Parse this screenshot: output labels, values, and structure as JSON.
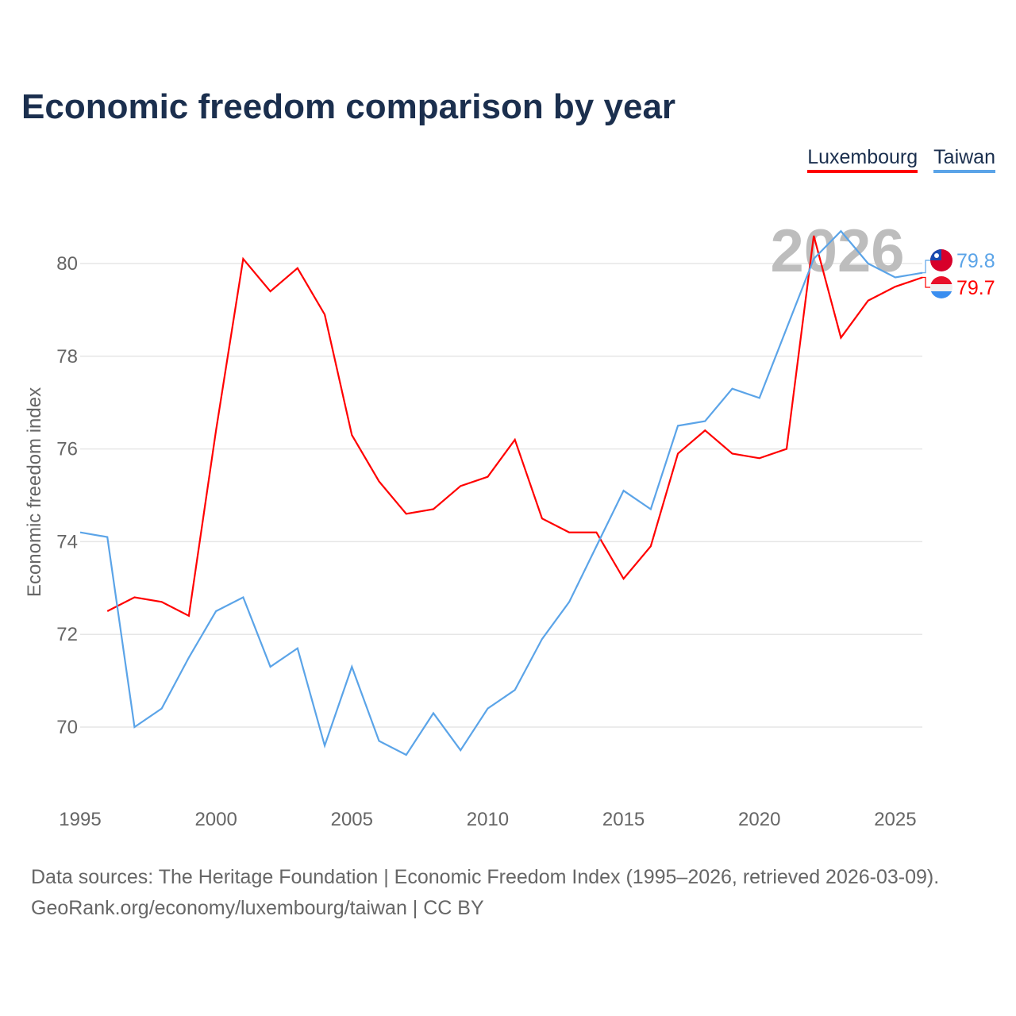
{
  "title": "Economic freedom comparison by year",
  "footer": {
    "line1": "Data sources: The Heritage Foundation | Economic Freedom Index (1995–2026, retrieved 2026-03-09).",
    "line2": "GeoRank.org/economy/luxembourg/taiwan | CC BY"
  },
  "chart_data": {
    "type": "line",
    "title": "Economic freedom comparison by year",
    "xlabel": "",
    "ylabel": "Economic freedom index",
    "xlim": [
      1995,
      2026
    ],
    "ylim": [
      68.5,
      81.5
    ],
    "xticks": [
      1995,
      2000,
      2005,
      2010,
      2015,
      2020,
      2025
    ],
    "yticks": [
      70,
      72,
      74,
      76,
      78,
      80
    ],
    "grid": true,
    "legend_placement": "top-right",
    "year_label": "2026",
    "series": [
      {
        "name": "Luxembourg",
        "color": "#ff0000",
        "end_label": "79.7",
        "x": [
          1996,
          1997,
          1998,
          1999,
          2000,
          2001,
          2002,
          2003,
          2004,
          2005,
          2006,
          2007,
          2008,
          2009,
          2010,
          2011,
          2012,
          2013,
          2014,
          2015,
          2016,
          2017,
          2018,
          2019,
          2020,
          2021,
          2022,
          2023,
          2024,
          2025,
          2026
        ],
        "values": [
          72.5,
          72.8,
          72.7,
          72.4,
          76.4,
          80.1,
          79.4,
          79.9,
          78.9,
          76.3,
          75.3,
          74.6,
          74.7,
          75.2,
          75.4,
          76.2,
          74.5,
          74.2,
          74.2,
          73.2,
          73.9,
          75.9,
          76.4,
          75.9,
          75.8,
          76.0,
          80.6,
          78.4,
          79.2,
          79.5,
          79.7
        ]
      },
      {
        "name": "Taiwan",
        "color": "#5ba4e8",
        "end_label": "79.8",
        "x": [
          1995,
          1996,
          1997,
          1998,
          1999,
          2000,
          2001,
          2002,
          2003,
          2004,
          2005,
          2006,
          2007,
          2008,
          2009,
          2010,
          2011,
          2012,
          2013,
          2014,
          2015,
          2016,
          2017,
          2018,
          2019,
          2020,
          2021,
          2022,
          2023,
          2024,
          2025,
          2026
        ],
        "values": [
          74.2,
          74.1,
          70.0,
          70.4,
          71.5,
          72.5,
          72.8,
          71.3,
          71.7,
          69.6,
          71.3,
          69.7,
          69.4,
          70.3,
          69.5,
          70.4,
          70.8,
          71.9,
          72.7,
          73.9,
          75.1,
          74.7,
          76.5,
          76.6,
          77.3,
          77.1,
          78.6,
          80.1,
          80.7,
          80.0,
          79.7,
          79.8
        ]
      }
    ]
  }
}
